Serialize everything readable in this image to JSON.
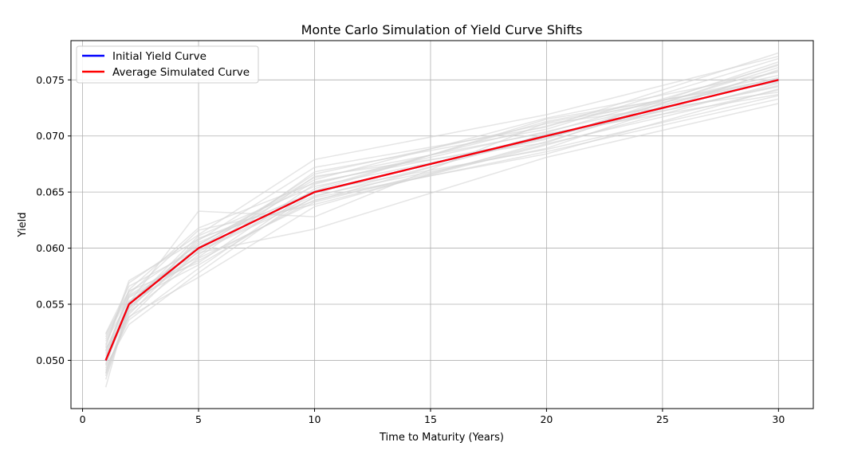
{
  "chart_data": {
    "type": "line",
    "title": "Monte Carlo Simulation of Yield Curve Shifts",
    "xlabel": "Time to Maturity (Years)",
    "ylabel": "Yield",
    "xlim": [
      -0.5,
      31.5
    ],
    "ylim": [
      0.0457,
      0.0785
    ],
    "x_ticks": [
      0,
      5,
      10,
      15,
      20,
      25,
      30
    ],
    "x_tick_labels": [
      "0",
      "5",
      "10",
      "15",
      "20",
      "25",
      "30"
    ],
    "y_ticks": [
      0.05,
      0.055,
      0.06,
      0.065,
      0.07,
      0.075
    ],
    "y_tick_labels": [
      "0.050",
      "0.055",
      "0.060",
      "0.065",
      "0.070",
      "0.075"
    ],
    "grid": true,
    "legend_position": "top-left",
    "x": [
      1,
      2,
      5,
      10,
      20,
      30
    ],
    "series": [
      {
        "name": "Initial Yield Curve",
        "color": "#0000ff",
        "values": [
          0.05,
          0.055,
          0.06,
          0.065,
          0.07,
          0.075
        ]
      },
      {
        "name": "Average Simulated Curve",
        "color": "#ff0000",
        "values": [
          0.05,
          0.055,
          0.06,
          0.065,
          0.07,
          0.075
        ]
      }
    ],
    "simulations_color": "#d3d3d3",
    "simulations": [
      [
        0.0521,
        0.0561,
        0.0603,
        0.0663,
        0.0703,
        0.0763
      ],
      [
        0.0489,
        0.0543,
        0.0591,
        0.0641,
        0.0693,
        0.0741
      ],
      [
        0.0476,
        0.0551,
        0.0633,
        0.0628,
        0.0712,
        0.0748
      ],
      [
        0.0512,
        0.0569,
        0.0612,
        0.0679,
        0.0719,
        0.0771
      ],
      [
        0.0495,
        0.0532,
        0.0578,
        0.0651,
        0.0688,
        0.0736
      ],
      [
        0.0508,
        0.0558,
        0.0596,
        0.0617,
        0.0681,
        0.0729
      ],
      [
        0.0483,
        0.0546,
        0.0607,
        0.0672,
        0.0708,
        0.0774
      ],
      [
        0.0517,
        0.0553,
        0.0585,
        0.0646,
        0.0699,
        0.0745
      ],
      [
        0.0502,
        0.0563,
        0.0618,
        0.0658,
        0.0704,
        0.0752
      ],
      [
        0.0491,
        0.0539,
        0.0574,
        0.0637,
        0.0695,
        0.0758
      ],
      [
        0.0524,
        0.0566,
        0.0599,
        0.0666,
        0.0711,
        0.0739
      ],
      [
        0.0497,
        0.0549,
        0.0611,
        0.0655,
        0.0697,
        0.0766
      ],
      [
        0.0506,
        0.0556,
        0.0589,
        0.0643,
        0.0686,
        0.0733
      ],
      [
        0.0486,
        0.0541,
        0.0603,
        0.0661,
        0.0716,
        0.0757
      ],
      [
        0.0514,
        0.0571,
        0.0608,
        0.0649,
        0.0701,
        0.0744
      ],
      [
        0.0499,
        0.0548,
        0.0594,
        0.0668,
        0.0706,
        0.0769
      ],
      [
        0.0519,
        0.0559,
        0.0616,
        0.0639,
        0.0692,
        0.0747
      ],
      [
        0.0493,
        0.0536,
        0.0582,
        0.0653,
        0.0713,
        0.0751
      ],
      [
        0.0504,
        0.0552,
        0.0601,
        0.0659,
        0.0698,
        0.0761
      ],
      [
        0.0488,
        0.0547,
        0.0597,
        0.0645,
        0.0684,
        0.0742
      ],
      [
        0.0523,
        0.0562,
        0.0587,
        0.0657,
        0.0709,
        0.0754
      ],
      [
        0.0501,
        0.0544,
        0.0609,
        0.0642,
        0.0702,
        0.0737
      ],
      [
        0.0509,
        0.0557,
        0.0592,
        0.0664,
        0.0694,
        0.0764
      ],
      [
        0.0496,
        0.0551,
        0.0605,
        0.0651,
        0.0715,
        0.0749
      ],
      [
        0.0511,
        0.0538,
        0.0598,
        0.0647,
        0.0689,
        0.0759
      ]
    ]
  }
}
